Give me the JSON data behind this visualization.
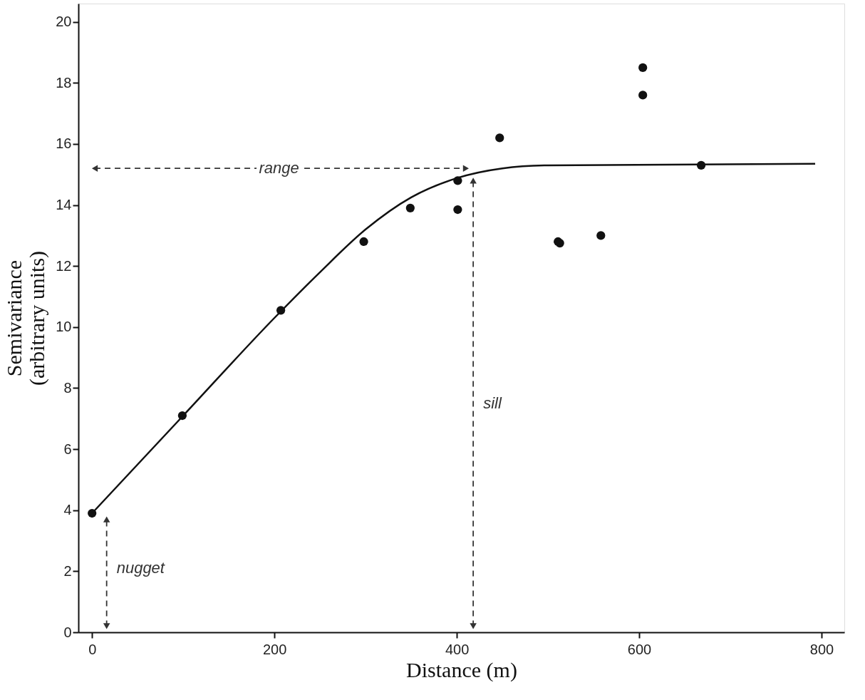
{
  "chart_data": {
    "type": "scatter",
    "xlabel": "Distance (m)",
    "ylabel": "Semivariance (arbitrary units)",
    "xlim": [
      -15,
      825
    ],
    "ylim": [
      0,
      20.6
    ],
    "xticks": [
      0,
      200,
      400,
      600,
      800
    ],
    "yticks": [
      0,
      2,
      4,
      6,
      8,
      10,
      12,
      14,
      16,
      18,
      20
    ],
    "grid": false,
    "series": [
      {
        "color": "#111111",
        "marker": "circle",
        "x": [
          0,
          99,
          207,
          298,
          349,
          401,
          401,
          447,
          511,
          513,
          558,
          604,
          604,
          668
        ],
        "values": [
          3.9,
          7.1,
          10.55,
          12.8,
          13.9,
          14.8,
          13.85,
          16.2,
          12.8,
          12.75,
          13.0,
          18.5,
          17.6,
          15.3
        ]
      },
      {
        "type": "line",
        "color": "#111111",
        "line_style": "solid",
        "marker": "none",
        "x": [
          0,
          100,
          200,
          250,
          300,
          350,
          400,
          450,
          500,
          793
        ],
        "values": [
          3.9,
          7.1,
          10.3,
          11.8,
          13.2,
          14.25,
          14.88,
          15.2,
          15.3,
          15.35
        ]
      },
      {
        "type": "line",
        "color": "#333333",
        "line_style": "dashed",
        "marker": "triangle",
        "x": [
          3,
          410
        ],
        "values": [
          15.2,
          15.2
        ]
      },
      {
        "type": "line",
        "color": "#333333",
        "line_style": "dashed",
        "marker": "triangle",
        "x": [
          418,
          418
        ],
        "values": [
          0.2,
          14.8
        ]
      },
      {
        "type": "line",
        "color": "#333333",
        "line_style": "dashed",
        "marker": "triangle",
        "x": [
          16,
          16
        ],
        "values": [
          0.2,
          3.7
        ]
      }
    ],
    "annotations": [
      {
        "text": "range",
        "x": 205,
        "y": 15.2
      },
      {
        "text": "sill",
        "x": 418,
        "y": 7.5
      },
      {
        "text": "nugget",
        "x": 16,
        "y": 2.1
      }
    ]
  }
}
